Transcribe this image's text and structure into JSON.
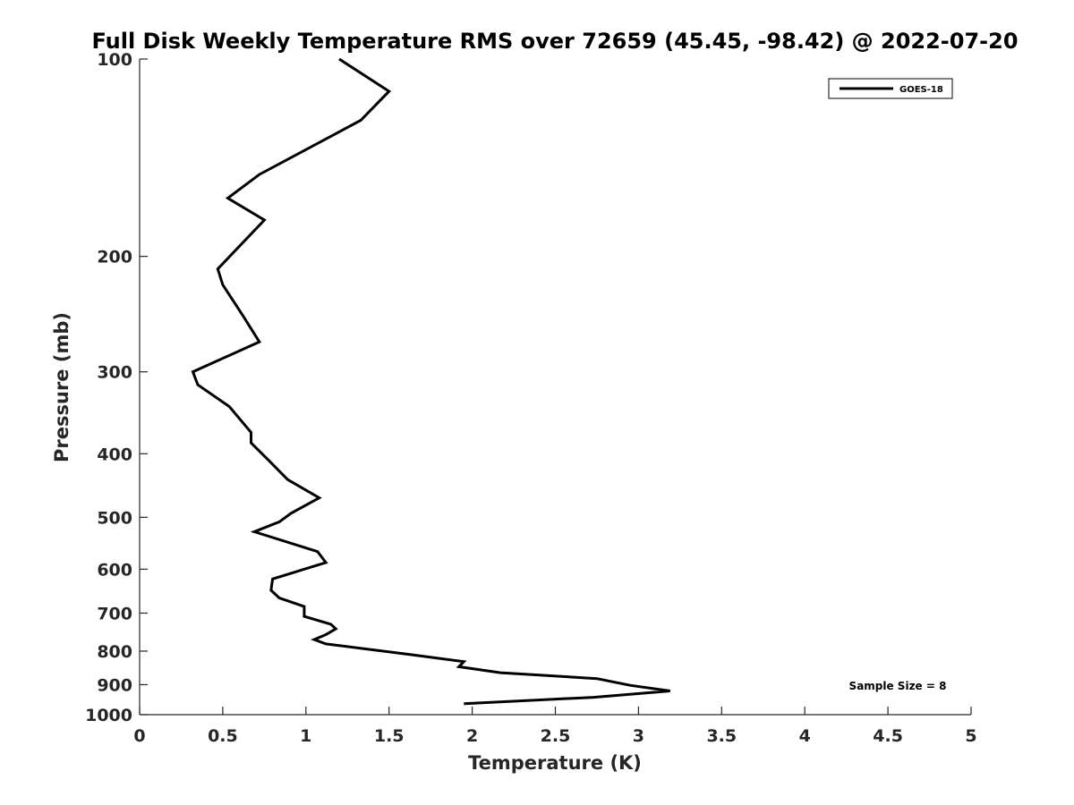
{
  "chart_data": {
    "type": "line",
    "title": "Full Disk Weekly Temperature RMS over 72659 (45.45, -98.42) @ 2022-07-20",
    "xlabel": "Temperature (K)",
    "ylabel": "Pressure (mb)",
    "xlim": [
      0,
      5
    ],
    "ylim": [
      100,
      1000
    ],
    "y_scale": "log",
    "y_reversed": true,
    "x_ticks": [
      0,
      0.5,
      1,
      1.5,
      2,
      2.5,
      3,
      3.5,
      4,
      4.5,
      5
    ],
    "x_tick_labels": [
      "0",
      "0.5",
      "1",
      "1.5",
      "2",
      "2.5",
      "3",
      "3.5",
      "4",
      "4.5",
      "5"
    ],
    "y_ticks": [
      100,
      200,
      300,
      400,
      500,
      600,
      700,
      800,
      900,
      1000
    ],
    "y_tick_labels": [
      "100",
      "200",
      "300",
      "400",
      "500",
      "600",
      "700",
      "800",
      "900",
      "1000"
    ],
    "grid": false,
    "legend_position": "top-right",
    "colors": {
      "line": "#000000",
      "axis": "#262626"
    },
    "series": [
      {
        "name": "GOES-18",
        "x": [
          1.2,
          1.5,
          1.33,
          0.72,
          0.53,
          0.75,
          0.47,
          0.5,
          0.62,
          0.72,
          0.32,
          0.35,
          0.54,
          0.67,
          0.67,
          0.77,
          0.89,
          1.08,
          0.91,
          0.84,
          0.69,
          1.07,
          1.12,
          0.8,
          0.79,
          0.84,
          0.99,
          0.99,
          1.15,
          1.18,
          1.12,
          1.05,
          1.12,
          1.63,
          1.95,
          1.92,
          2.17,
          2.75,
          2.95,
          3.19,
          2.73,
          1.95
        ],
        "y": [
          100,
          112,
          124,
          150,
          163,
          176,
          209,
          221,
          246,
          270,
          300,
          314,
          339,
          371,
          385,
          408,
          438,
          467,
          493,
          508,
          526,
          564,
          586,
          621,
          646,
          664,
          684,
          708,
          728,
          740,
          755,
          768,
          780,
          810,
          830,
          845,
          863,
          881,
          902,
          920,
          941,
          962
        ]
      }
    ],
    "annotations": [
      "Sample Size = 8"
    ]
  }
}
